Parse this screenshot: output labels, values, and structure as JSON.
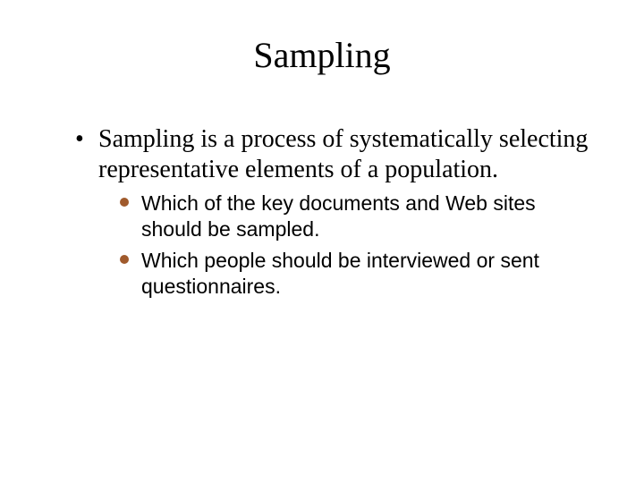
{
  "title": "Sampling",
  "bullet_color_l1": "#000000",
  "bullet_color_l2": "#a05a2c",
  "text_color": "#000000",
  "background_color": "#ffffff",
  "title_fontsize": 40,
  "l1_fontsize": 28,
  "l2_fontsize": 23,
  "level1": {
    "text": "Sampling is a process of systematically selecting representative elements of a population."
  },
  "level2": [
    {
      "text": "Which of the key documents and Web sites should be sampled."
    },
    {
      "text": "Which people should be interviewed or sent questionnaires."
    }
  ]
}
